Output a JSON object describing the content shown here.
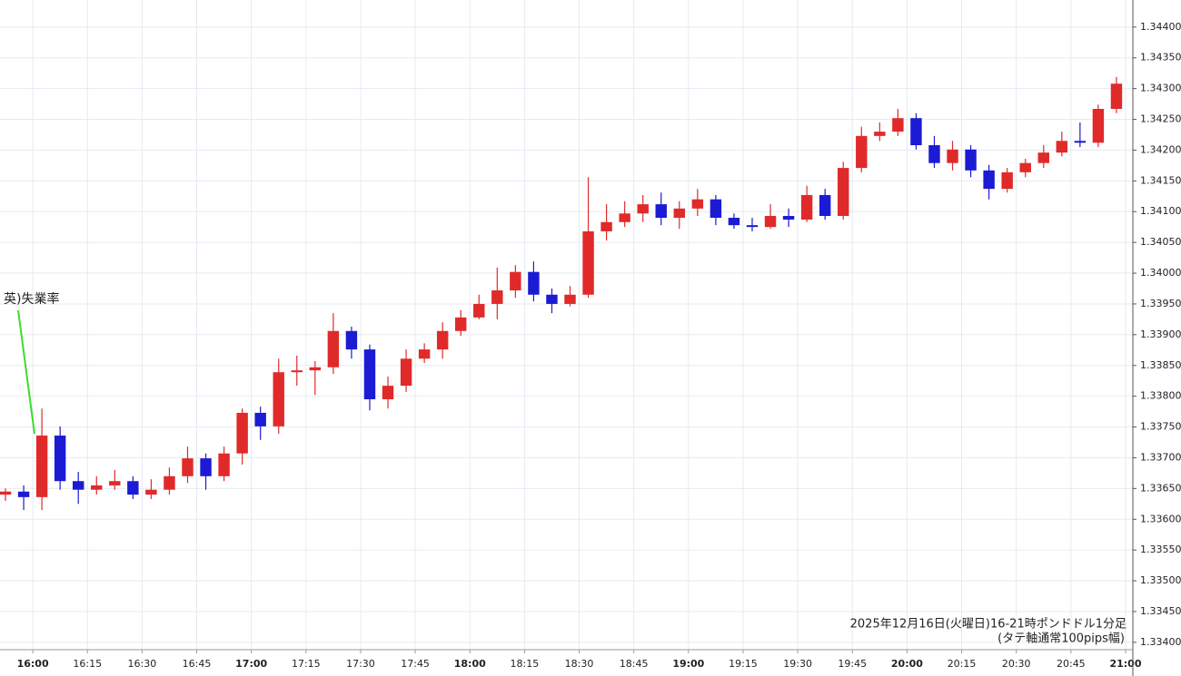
{
  "chart_data": {
    "type": "candlestick",
    "annotation": "英)失業率",
    "caption": [
      "2025年12月16日(火曜日)16-21時ポンドドル1分足",
      "(タテ軸通常100pips幅)"
    ],
    "up_color": "#e02a2a",
    "down_color": "#1b1bd4",
    "annotation_color": "#3ddc2a",
    "grid": true,
    "xlim": [
      "15:51",
      "21:02"
    ],
    "xticks": [
      "16:00",
      "16:15",
      "16:30",
      "16:45",
      "17:00",
      "17:15",
      "17:30",
      "17:45",
      "18:00",
      "18:15",
      "18:30",
      "18:45",
      "19:00",
      "19:15",
      "19:30",
      "19:45",
      "20:00",
      "20:15",
      "20:30",
      "20:45",
      "21:00"
    ],
    "ylim": [
      1.33388,
      1.34444
    ],
    "yticks": [
      {
        "value": 1.334,
        "label": "1.33400"
      },
      {
        "value": 1.3345,
        "label": "1.33450"
      },
      {
        "value": 1.335,
        "label": "1.33500"
      },
      {
        "value": 1.3355,
        "label": "1.33550"
      },
      {
        "value": 1.336,
        "label": "1.33600"
      },
      {
        "value": 1.3365,
        "label": "1.33650"
      },
      {
        "value": 1.337,
        "label": "1.33700"
      },
      {
        "value": 1.3375,
        "label": "1.33750"
      },
      {
        "value": 1.338,
        "label": "1.33800"
      },
      {
        "value": 1.3385,
        "label": "1.33850"
      },
      {
        "value": 1.339,
        "label": "1.33900"
      },
      {
        "value": 1.3395,
        "label": "1.33950"
      },
      {
        "value": 1.34,
        "label": "1.34000"
      },
      {
        "value": 1.3405,
        "label": "1.34050"
      },
      {
        "value": 1.341,
        "label": "1.34100"
      },
      {
        "value": 1.3415,
        "label": "1.34150"
      },
      {
        "value": 1.342,
        "label": "1.34200"
      },
      {
        "value": 1.3425,
        "label": "1.34250"
      },
      {
        "value": 1.343,
        "label": "1.34300"
      },
      {
        "value": 1.3435,
        "label": "1.34350"
      },
      {
        "value": 1.344,
        "label": "1.34400"
      }
    ],
    "x": [
      "15:50",
      "15:55",
      "16:00",
      "16:05",
      "16:10",
      "16:15",
      "16:20",
      "16:25",
      "16:30",
      "16:35",
      "16:40",
      "16:45",
      "16:50",
      "16:55",
      "17:00",
      "17:05",
      "17:10",
      "17:15",
      "17:20",
      "17:25",
      "17:30",
      "17:35",
      "17:40",
      "17:45",
      "17:50",
      "17:55",
      "18:00",
      "18:05",
      "18:10",
      "18:15",
      "18:20",
      "18:25",
      "18:30",
      "18:35",
      "18:40",
      "18:45",
      "18:50",
      "18:55",
      "19:00",
      "19:05",
      "19:10",
      "19:15",
      "19:20",
      "19:25",
      "19:30",
      "19:35",
      "19:40",
      "19:45",
      "19:50",
      "19:55",
      "20:00",
      "20:05",
      "20:10",
      "20:15",
      "20:20",
      "20:25",
      "20:30",
      "20:35",
      "20:40",
      "20:45",
      "20:50",
      "20:55"
    ],
    "open": [
      1.3364,
      1.33645,
      1.33636,
      1.33736,
      1.33662,
      1.33648,
      1.33655,
      1.33662,
      1.3364,
      1.33648,
      1.3367,
      1.33699,
      1.3367,
      1.33707,
      1.33773,
      1.33751,
      1.33839,
      1.33842,
      1.33847,
      1.33906,
      1.33876,
      1.33795,
      1.33817,
      1.33861,
      1.33876,
      1.33906,
      1.33928,
      1.3395,
      1.33972,
      1.34002,
      1.33965,
      1.3395,
      1.33965,
      1.34068,
      1.34083,
      1.34097,
      1.34112,
      1.3409,
      1.34105,
      1.3412,
      1.3409,
      1.34078,
      1.34075,
      1.34093,
      1.34087,
      1.34127,
      1.34093,
      1.34171,
      1.34223,
      1.3423,
      1.34252,
      1.34208,
      1.34179,
      1.34201,
      1.34167,
      1.34137,
      1.34164,
      1.34179,
      1.34196,
      1.34215,
      1.34212,
      1.34267
    ],
    "high": [
      1.3365,
      1.33655,
      1.3378,
      1.33751,
      1.33677,
      1.3367,
      1.3368,
      1.3367,
      1.33665,
      1.33684,
      1.33718,
      1.33707,
      1.33718,
      1.3378,
      1.33783,
      1.33861,
      1.33866,
      1.33857,
      1.33935,
      1.33913,
      1.33884,
      1.33832,
      1.33876,
      1.33886,
      1.3392,
      1.3394,
      1.33965,
      1.34009,
      1.34013,
      1.34019,
      1.33975,
      1.33979,
      1.34156,
      1.34112,
      1.34117,
      1.34127,
      1.34131,
      1.34117,
      1.34137,
      1.34127,
      1.34097,
      1.3409,
      1.34112,
      1.34105,
      1.34142,
      1.34137,
      1.34181,
      1.34238,
      1.34245,
      1.34267,
      1.3426,
      1.34223,
      1.34215,
      1.34208,
      1.34176,
      1.34171,
      1.34186,
      1.34208,
      1.3423,
      1.34245,
      1.34274,
      1.34319
    ],
    "low": [
      1.3363,
      1.33615,
      1.33615,
      1.33648,
      1.33625,
      1.3364,
      1.33648,
      1.33633,
      1.33633,
      1.3364,
      1.33659,
      1.33648,
      1.33662,
      1.33689,
      1.33729,
      1.33739,
      1.33817,
      1.33802,
      1.33836,
      1.33861,
      1.33777,
      1.3378,
      1.33807,
      1.33854,
      1.33861,
      1.33898,
      1.33925,
      1.33925,
      1.3396,
      1.33954,
      1.33935,
      1.33946,
      1.3396,
      1.34053,
      1.34075,
      1.34083,
      1.34078,
      1.34072,
      1.34093,
      1.34078,
      1.34072,
      1.34068,
      1.34072,
      1.34075,
      1.34083,
      1.34087,
      1.34087,
      1.34164,
      1.34215,
      1.34223,
      1.34201,
      1.34171,
      1.34167,
      1.34156,
      1.3412,
      1.34131,
      1.34156,
      1.34171,
      1.3419,
      1.34205,
      1.34205,
      1.3426
    ],
    "close": [
      1.33645,
      1.33636,
      1.33736,
      1.33662,
      1.33648,
      1.33655,
      1.33662,
      1.3364,
      1.33648,
      1.3367,
      1.33699,
      1.3367,
      1.33707,
      1.33773,
      1.33751,
      1.33839,
      1.33842,
      1.33847,
      1.33906,
      1.33876,
      1.33795,
      1.33817,
      1.33861,
      1.33876,
      1.33906,
      1.33928,
      1.3395,
      1.33972,
      1.34002,
      1.33965,
      1.3395,
      1.33965,
      1.34068,
      1.34083,
      1.34097,
      1.34112,
      1.3409,
      1.34105,
      1.3412,
      1.3409,
      1.34078,
      1.34075,
      1.34093,
      1.34087,
      1.34127,
      1.34093,
      1.34171,
      1.34223,
      1.3423,
      1.34252,
      1.34208,
      1.34179,
      1.34201,
      1.34167,
      1.34137,
      1.34164,
      1.34179,
      1.34196,
      1.34215,
      1.34212,
      1.34267,
      1.34308
    ]
  }
}
